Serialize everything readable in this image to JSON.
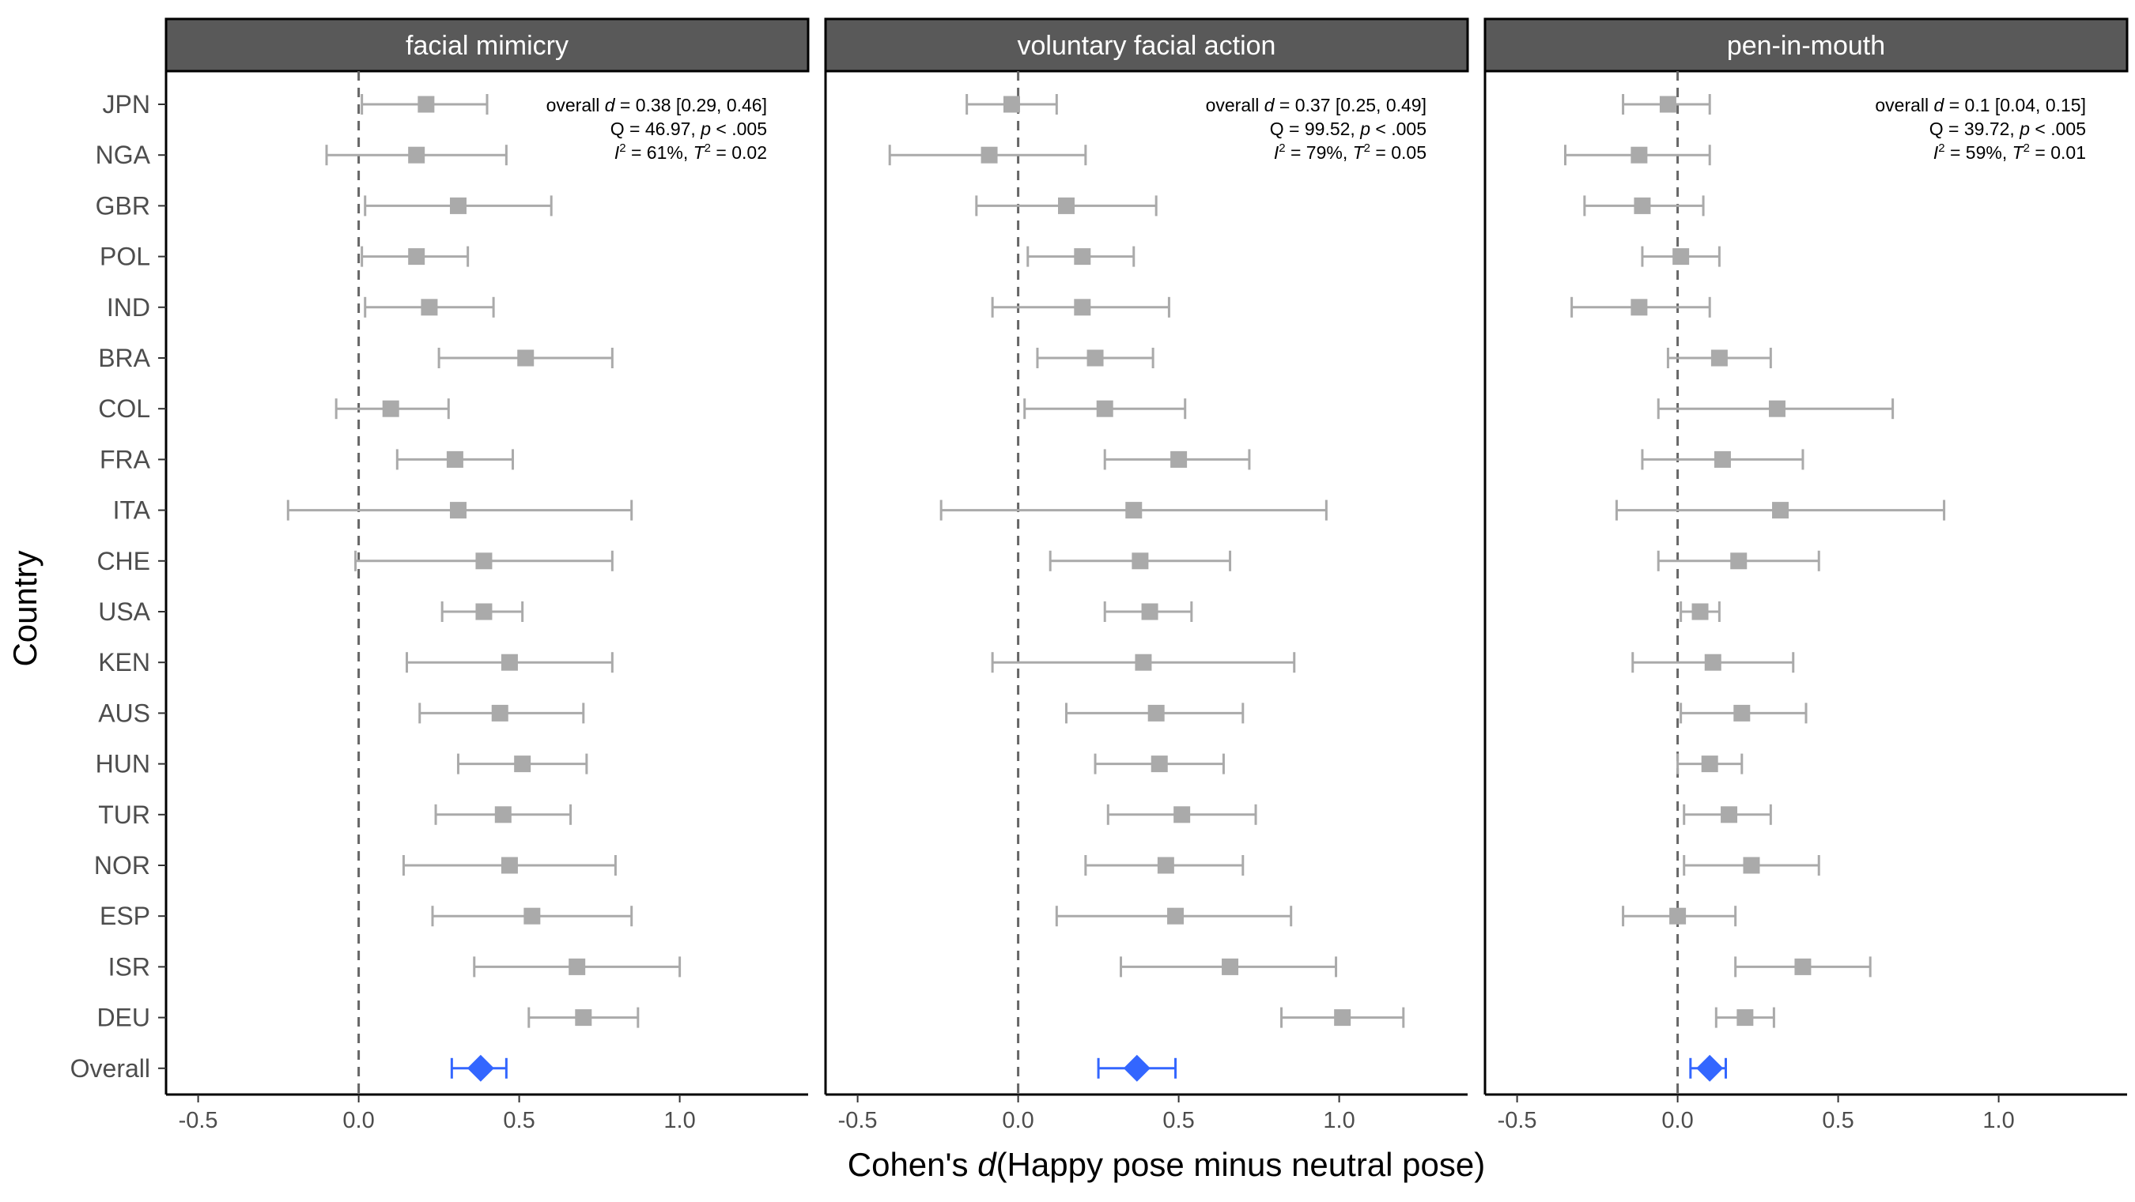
{
  "chart_data": {
    "type": "forest",
    "ylabel": "Country",
    "xlabel_prefix": "Cohen's ",
    "xlabel_italic": "d",
    "xlabel_suffix": "(Happy pose minus neutral pose)",
    "xlim": [
      -0.6,
      1.4
    ],
    "xticks": [
      -0.5,
      0.0,
      0.5,
      1.0
    ],
    "xtick_labels": [
      "-0.5",
      "0.0",
      "0.5",
      "1.0"
    ],
    "reference_line": 0,
    "categories": [
      "JPN",
      "NGA",
      "GBR",
      "POL",
      "IND",
      "BRA",
      "COL",
      "FRA",
      "ITA",
      "CHE",
      "USA",
      "KEN",
      "AUS",
      "HUN",
      "TUR",
      "NOR",
      "ESP",
      "ISR",
      "DEU",
      "Overall"
    ],
    "colors": {
      "country": "#aaaaaa",
      "overall": "#3366ff",
      "strip": "#595959"
    },
    "panels": [
      {
        "title": "facial mimicry",
        "annotation": {
          "line1": {
            "pre": "overall ",
            "italic": "d",
            "post": " = 0.38 [0.29, 0.46]"
          },
          "line2": {
            "pre": "Q = 46.97, ",
            "italic": "p",
            "post": " < .005"
          },
          "line3": {
            "i": "I",
            "sup1": "2",
            "mid": " = 61%, ",
            "t": "T",
            "sup2": "2",
            "post": " = 0.02"
          }
        },
        "estimates": [
          {
            "country": "JPN",
            "est": 0.21,
            "lo": 0.01,
            "hi": 0.4
          },
          {
            "country": "NGA",
            "est": 0.18,
            "lo": -0.1,
            "hi": 0.46
          },
          {
            "country": "GBR",
            "est": 0.31,
            "lo": 0.02,
            "hi": 0.6
          },
          {
            "country": "POL",
            "est": 0.18,
            "lo": 0.01,
            "hi": 0.34
          },
          {
            "country": "IND",
            "est": 0.22,
            "lo": 0.02,
            "hi": 0.42
          },
          {
            "country": "BRA",
            "est": 0.52,
            "lo": 0.25,
            "hi": 0.79
          },
          {
            "country": "COL",
            "est": 0.1,
            "lo": -0.07,
            "hi": 0.28
          },
          {
            "country": "FRA",
            "est": 0.3,
            "lo": 0.12,
            "hi": 0.48
          },
          {
            "country": "ITA",
            "est": 0.31,
            "lo": -0.22,
            "hi": 0.85
          },
          {
            "country": "CHE",
            "est": 0.39,
            "lo": -0.01,
            "hi": 0.79
          },
          {
            "country": "USA",
            "est": 0.39,
            "lo": 0.26,
            "hi": 0.51
          },
          {
            "country": "KEN",
            "est": 0.47,
            "lo": 0.15,
            "hi": 0.79
          },
          {
            "country": "AUS",
            "est": 0.44,
            "lo": 0.19,
            "hi": 0.7
          },
          {
            "country": "HUN",
            "est": 0.51,
            "lo": 0.31,
            "hi": 0.71
          },
          {
            "country": "TUR",
            "est": 0.45,
            "lo": 0.24,
            "hi": 0.66
          },
          {
            "country": "NOR",
            "est": 0.47,
            "lo": 0.14,
            "hi": 0.8
          },
          {
            "country": "ESP",
            "est": 0.54,
            "lo": 0.23,
            "hi": 0.85
          },
          {
            "country": "ISR",
            "est": 0.68,
            "lo": 0.36,
            "hi": 1.0
          },
          {
            "country": "DEU",
            "est": 0.7,
            "lo": 0.53,
            "hi": 0.87
          },
          {
            "country": "Overall",
            "est": 0.38,
            "lo": 0.29,
            "hi": 0.46
          }
        ]
      },
      {
        "title": "voluntary facial action",
        "annotation": {
          "line1": {
            "pre": "overall ",
            "italic": "d",
            "post": " = 0.37 [0.25, 0.49]"
          },
          "line2": {
            "pre": "Q = 99.52, ",
            "italic": "p",
            "post": " < .005"
          },
          "line3": {
            "i": "I",
            "sup1": "2",
            "mid": " = 79%, ",
            "t": "T",
            "sup2": "2",
            "post": " = 0.05"
          }
        },
        "estimates": [
          {
            "country": "JPN",
            "est": -0.02,
            "lo": -0.16,
            "hi": 0.12
          },
          {
            "country": "NGA",
            "est": -0.09,
            "lo": -0.4,
            "hi": 0.21
          },
          {
            "country": "GBR",
            "est": 0.15,
            "lo": -0.13,
            "hi": 0.43
          },
          {
            "country": "POL",
            "est": 0.2,
            "lo": 0.03,
            "hi": 0.36
          },
          {
            "country": "IND",
            "est": 0.2,
            "lo": -0.08,
            "hi": 0.47
          },
          {
            "country": "BRA",
            "est": 0.24,
            "lo": 0.06,
            "hi": 0.42
          },
          {
            "country": "COL",
            "est": 0.27,
            "lo": 0.02,
            "hi": 0.52
          },
          {
            "country": "FRA",
            "est": 0.5,
            "lo": 0.27,
            "hi": 0.72
          },
          {
            "country": "ITA",
            "est": 0.36,
            "lo": -0.24,
            "hi": 0.96
          },
          {
            "country": "CHE",
            "est": 0.38,
            "lo": 0.1,
            "hi": 0.66
          },
          {
            "country": "USA",
            "est": 0.41,
            "lo": 0.27,
            "hi": 0.54
          },
          {
            "country": "KEN",
            "est": 0.39,
            "lo": -0.08,
            "hi": 0.86
          },
          {
            "country": "AUS",
            "est": 0.43,
            "lo": 0.15,
            "hi": 0.7
          },
          {
            "country": "HUN",
            "est": 0.44,
            "lo": 0.24,
            "hi": 0.64
          },
          {
            "country": "TUR",
            "est": 0.51,
            "lo": 0.28,
            "hi": 0.74
          },
          {
            "country": "NOR",
            "est": 0.46,
            "lo": 0.21,
            "hi": 0.7
          },
          {
            "country": "ESP",
            "est": 0.49,
            "lo": 0.12,
            "hi": 0.85
          },
          {
            "country": "ISR",
            "est": 0.66,
            "lo": 0.32,
            "hi": 0.99
          },
          {
            "country": "DEU",
            "est": 1.01,
            "lo": 0.82,
            "hi": 1.2
          },
          {
            "country": "Overall",
            "est": 0.37,
            "lo": 0.25,
            "hi": 0.49
          }
        ]
      },
      {
        "title": "pen-in-mouth",
        "annotation": {
          "line1": {
            "pre": "overall ",
            "italic": "d",
            "post": " = 0.1 [0.04, 0.15]"
          },
          "line2": {
            "pre": "Q = 39.72, ",
            "italic": "p",
            "post": " < .005"
          },
          "line3": {
            "i": "I",
            "sup1": "2",
            "mid": " = 59%, ",
            "t": "T",
            "sup2": "2",
            "post": " = 0.01"
          }
        },
        "estimates": [
          {
            "country": "JPN",
            "est": -0.03,
            "lo": -0.17,
            "hi": 0.1
          },
          {
            "country": "NGA",
            "est": -0.12,
            "lo": -0.35,
            "hi": 0.1
          },
          {
            "country": "GBR",
            "est": -0.11,
            "lo": -0.29,
            "hi": 0.08
          },
          {
            "country": "POL",
            "est": 0.01,
            "lo": -0.11,
            "hi": 0.13
          },
          {
            "country": "IND",
            "est": -0.12,
            "lo": -0.33,
            "hi": 0.1
          },
          {
            "country": "BRA",
            "est": 0.13,
            "lo": -0.03,
            "hi": 0.29
          },
          {
            "country": "COL",
            "est": 0.31,
            "lo": -0.06,
            "hi": 0.67
          },
          {
            "country": "FRA",
            "est": 0.14,
            "lo": -0.11,
            "hi": 0.39
          },
          {
            "country": "ITA",
            "est": 0.32,
            "lo": -0.19,
            "hi": 0.83
          },
          {
            "country": "CHE",
            "est": 0.19,
            "lo": -0.06,
            "hi": 0.44
          },
          {
            "country": "USA",
            "est": 0.07,
            "lo": 0.01,
            "hi": 0.13
          },
          {
            "country": "KEN",
            "est": 0.11,
            "lo": -0.14,
            "hi": 0.36
          },
          {
            "country": "AUS",
            "est": 0.2,
            "lo": 0.01,
            "hi": 0.4
          },
          {
            "country": "HUN",
            "est": 0.1,
            "lo": 0.0,
            "hi": 0.2
          },
          {
            "country": "TUR",
            "est": 0.16,
            "lo": 0.02,
            "hi": 0.29
          },
          {
            "country": "NOR",
            "est": 0.23,
            "lo": 0.02,
            "hi": 0.44
          },
          {
            "country": "ESP",
            "est": 0.0,
            "lo": -0.17,
            "hi": 0.18
          },
          {
            "country": "ISR",
            "est": 0.39,
            "lo": 0.18,
            "hi": 0.6
          },
          {
            "country": "DEU",
            "est": 0.21,
            "lo": 0.12,
            "hi": 0.3
          },
          {
            "country": "Overall",
            "est": 0.1,
            "lo": 0.04,
            "hi": 0.15
          }
        ]
      }
    ]
  }
}
